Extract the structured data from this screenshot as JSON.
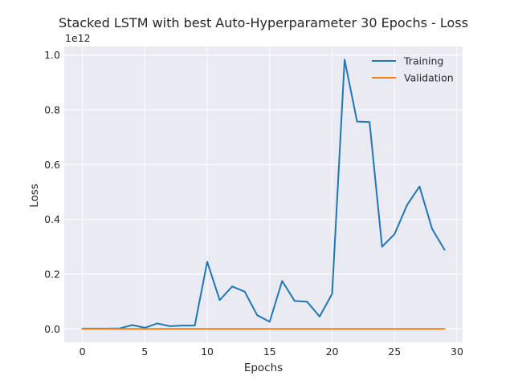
{
  "chart_data": {
    "type": "line",
    "title": "Stacked LSTM with best Auto-Hyperparameter 30 Epochs - Loss",
    "xlabel": "Epochs",
    "ylabel": "Loss",
    "y_offset_label": "1e12",
    "xlim": [
      -1.45,
      30.45
    ],
    "ylim": [
      -0.049,
      1.031
    ],
    "x_scale": "linear",
    "y_scale": "linear",
    "grid": true,
    "legend_position": "top-right",
    "x_ticks": [
      0,
      5,
      10,
      15,
      20,
      25,
      30
    ],
    "x_tick_labels": [
      "0",
      "5",
      "10",
      "15",
      "20",
      "25",
      "30"
    ],
    "y_ticks": [
      0.0,
      0.2,
      0.4,
      0.6,
      0.8,
      1.0
    ],
    "y_tick_labels": [
      "0.0",
      "0.2",
      "0.4",
      "0.6",
      "0.8",
      "1.0"
    ],
    "x": [
      0,
      1,
      2,
      3,
      4,
      5,
      6,
      7,
      8,
      9,
      10,
      11,
      12,
      13,
      14,
      15,
      16,
      17,
      18,
      19,
      20,
      21,
      22,
      23,
      24,
      25,
      26,
      27,
      28,
      29
    ],
    "series": [
      {
        "name": "Training",
        "color": "#1f77b4",
        "values": [
          0.001,
          0.001,
          0.001,
          0.002,
          0.014,
          0.004,
          0.02,
          0.01,
          0.012,
          0.012,
          0.245,
          0.105,
          0.155,
          0.136,
          0.05,
          0.026,
          0.175,
          0.102,
          0.099,
          0.045,
          0.128,
          0.983,
          0.757,
          0.755,
          0.3,
          0.346,
          0.452,
          0.52,
          0.366,
          0.289
        ]
      },
      {
        "name": "Validation",
        "color": "#ff7f0e",
        "values": [
          0.0,
          0.0,
          0.0,
          0.0,
          0.0,
          0.0,
          0.0,
          0.0,
          0.0,
          0.0,
          0.0,
          0.0,
          0.0,
          0.0,
          0.0,
          0.0,
          0.0,
          0.0,
          0.0,
          0.0,
          0.0,
          0.0,
          0.0,
          0.0,
          0.0,
          0.0,
          0.0,
          0.0,
          0.0,
          0.0
        ]
      }
    ]
  },
  "style": {
    "plot_background": "#eaeaf2",
    "grid_color": "#ffffff",
    "text_color": "#262626"
  }
}
